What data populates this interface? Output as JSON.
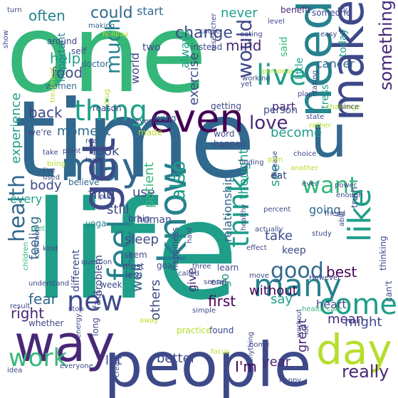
{
  "word_cloud": {
    "background": "#ffffff",
    "palette": {
      "yellow": "#b5de2b",
      "green": "#6ece58",
      "lightgreen": "#35b779",
      "teal": "#1f9e89",
      "cyan": "#26828e",
      "blue": "#31688e",
      "indigo": "#3e4989",
      "purple": "#482878",
      "dark": "#440154"
    },
    "words": [
      {
        "text": "one",
        "color": "lightgreen"
      },
      {
        "text": "time",
        "color": "blue"
      },
      {
        "text": "life",
        "color": "teal"
      },
      {
        "text": "people",
        "color": "indigo"
      },
      {
        "text": "way",
        "color": "purple"
      },
      {
        "text": "make",
        "color": "indigo"
      },
      {
        "text": "need",
        "color": "cyan"
      },
      {
        "text": "u",
        "color": "blue"
      },
      {
        "text": "even",
        "color": "dark"
      },
      {
        "text": "may",
        "color": "blue"
      },
      {
        "text": "get",
        "color": "indigo"
      },
      {
        "text": "know",
        "color": "cyan"
      },
      {
        "text": "day",
        "color": "yellow"
      },
      {
        "text": "feel",
        "color": "cyan"
      },
      {
        "text": "live",
        "color": "teal"
      },
      {
        "text": "thing",
        "color": "teal"
      },
      {
        "text": "new",
        "color": "indigo"
      },
      {
        "text": "many",
        "color": "cyan"
      },
      {
        "text": "come",
        "color": "teal"
      },
      {
        "text": "like",
        "color": "teal"
      },
      {
        "text": "want",
        "color": "lightgreen"
      },
      {
        "text": "good",
        "color": "blue"
      },
      {
        "text": "think",
        "color": "teal"
      },
      {
        "text": "work",
        "color": "lightgreen"
      },
      {
        "text": "much",
        "color": "cyan"
      },
      {
        "text": "would",
        "color": "indigo"
      },
      {
        "text": "love",
        "color": "purple"
      },
      {
        "text": "health",
        "color": "blue"
      },
      {
        "text": "also",
        "color": "teal"
      },
      {
        "text": "something",
        "color": "purple"
      },
      {
        "text": "really",
        "color": "purple"
      },
      {
        "text": "could",
        "color": "blue"
      },
      {
        "text": "change",
        "color": "indigo"
      },
      {
        "text": "often",
        "color": "cyan"
      },
      {
        "text": "food",
        "color": "indigo"
      },
      {
        "text": "help",
        "color": "teal"
      },
      {
        "text": "mind",
        "color": "purple"
      },
      {
        "text": "cancer",
        "color": "blue"
      },
      {
        "text": "world",
        "color": "indigo"
      },
      {
        "text": "part",
        "color": "purple"
      },
      {
        "text": "exercise",
        "color": "indigo"
      },
      {
        "text": "back",
        "color": "indigo"
      },
      {
        "text": "person",
        "color": "indigo"
      },
      {
        "text": "become",
        "color": "teal"
      },
      {
        "text": "experience",
        "color": "teal"
      },
      {
        "text": "moment",
        "color": "blue"
      },
      {
        "text": "look",
        "color": "indigo"
      },
      {
        "text": "body",
        "color": "indigo"
      },
      {
        "text": "find",
        "color": "indigo"
      },
      {
        "text": "use",
        "color": "indigo"
      },
      {
        "text": "patient",
        "color": "lightgreen"
      },
      {
        "text": "see",
        "color": "teal"
      },
      {
        "text": "thought",
        "color": "teal"
      },
      {
        "text": "going",
        "color": "blue"
      },
      {
        "text": "still",
        "color": "indigo"
      },
      {
        "text": "sleep",
        "color": "indigo"
      },
      {
        "text": "relationship",
        "color": "blue"
      },
      {
        "text": "take",
        "color": "indigo"
      },
      {
        "text": "keep",
        "color": "indigo"
      },
      {
        "text": "feeling",
        "color": "blue"
      },
      {
        "text": "fear",
        "color": "blue"
      },
      {
        "text": "right",
        "color": "purple"
      },
      {
        "text": "well",
        "color": "blue"
      },
      {
        "text": "without",
        "color": "dark"
      },
      {
        "text": "say",
        "color": "teal"
      },
      {
        "text": "best",
        "color": "dark"
      },
      {
        "text": "heart",
        "color": "indigo"
      },
      {
        "text": "mean",
        "color": "purple"
      },
      {
        "text": "might",
        "color": "indigo"
      },
      {
        "text": "others",
        "color": "indigo"
      },
      {
        "text": "first",
        "color": "dark"
      },
      {
        "text": "I'm",
        "color": "dark"
      },
      {
        "text": "year",
        "color": "purple"
      },
      {
        "text": "better",
        "color": "indigo"
      },
      {
        "text": "let",
        "color": "indigo"
      },
      {
        "text": "great",
        "color": "purple"
      },
      {
        "text": "every",
        "color": "teal"
      },
      {
        "text": "start",
        "color": "blue"
      },
      {
        "text": "never",
        "color": "teal"
      },
      {
        "text": "always",
        "color": "teal"
      },
      {
        "text": "important",
        "color": "cyan"
      },
      {
        "text": "little",
        "color": "teal"
      },
      {
        "text": "said",
        "color": "lightgreen"
      },
      {
        "text": "stress",
        "color": "teal"
      },
      {
        "text": "today",
        "color": "teal"
      },
      {
        "text": "eat",
        "color": "indigo"
      },
      {
        "text": "give",
        "color": "purple"
      },
      {
        "text": "go",
        "color": "teal"
      },
      {
        "text": "fact",
        "color": "indigo"
      },
      {
        "text": "different",
        "color": "indigo"
      },
      {
        "text": "problem",
        "color": "indigo"
      },
      {
        "text": "human",
        "color": "indigo"
      },
      {
        "text": "two",
        "color": "indigo"
      },
      {
        "text": "self",
        "color": "indigo"
      },
      {
        "text": "around",
        "color": "indigo"
      },
      {
        "text": "women",
        "color": "blue"
      },
      {
        "text": "making",
        "color": "blue"
      },
      {
        "text": "doctor",
        "color": "blue"
      },
      {
        "text": "reason",
        "color": "indigo"
      },
      {
        "text": "living",
        "color": "blue"
      },
      {
        "text": "true",
        "color": "blue"
      },
      {
        "text": "we're",
        "color": "indigo"
      },
      {
        "text": "yoga",
        "color": "cyan"
      },
      {
        "text": "believe",
        "color": "blue"
      },
      {
        "text": "seem",
        "color": "indigo"
      },
      {
        "text": "must",
        "color": "indigo"
      },
      {
        "text": "less",
        "color": "indigo"
      },
      {
        "text": "goal",
        "color": "indigo"
      },
      {
        "text": "week",
        "color": "indigo"
      },
      {
        "text": "found",
        "color": "indigo"
      },
      {
        "text": "long",
        "color": "indigo"
      },
      {
        "text": "happiness",
        "color": "indigo"
      },
      {
        "text": "whether",
        "color": "indigo"
      },
      {
        "text": "practice",
        "color": "yellow"
      },
      {
        "text": "end",
        "color": "indigo"
      },
      {
        "text": "learn",
        "color": "indigo"
      },
      {
        "text": "getting",
        "color": "indigo"
      },
      {
        "text": "made",
        "color": "yellow"
      },
      {
        "text": "word",
        "color": "indigo"
      },
      {
        "text": "happen",
        "color": "indigo"
      },
      {
        "text": "brain",
        "color": "indigo"
      },
      {
        "text": "benefit",
        "color": "purple"
      },
      {
        "text": "someone",
        "color": "indigo"
      },
      {
        "text": "try",
        "color": "indigo"
      },
      {
        "text": "researcher",
        "color": "indigo"
      },
      {
        "text": "instead",
        "color": "indigo"
      },
      {
        "text": "eating",
        "color": "indigo"
      },
      {
        "text": "level",
        "color": "indigo"
      },
      {
        "text": "easy",
        "color": "indigo"
      },
      {
        "text": "cause",
        "color": "indigo"
      },
      {
        "text": "holiday",
        "color": "yellow"
      },
      {
        "text": "show",
        "color": "indigo"
      },
      {
        "text": "personal",
        "color": "yellow"
      },
      {
        "text": "working",
        "color": "indigo"
      },
      {
        "text": "yet",
        "color": "indigo"
      },
      {
        "text": "taking",
        "color": "indigo"
      },
      {
        "text": "place",
        "color": "indigo"
      },
      {
        "text": "challenge",
        "color": "yellow"
      },
      {
        "text": "since",
        "color": "indigo"
      },
      {
        "text": "state",
        "color": "indigo"
      },
      {
        "text": "rather",
        "color": "yellow"
      },
      {
        "text": "treatment",
        "color": "yellow"
      },
      {
        "text": "drug",
        "color": "yellow"
      },
      {
        "text": "everything",
        "color": "indigo"
      },
      {
        "text": "real",
        "color": "indigo"
      },
      {
        "text": "lead",
        "color": "indigo"
      },
      {
        "text": "take",
        "color": "indigo"
      },
      {
        "text": "bring",
        "color": "yellow"
      },
      {
        "text": "I've",
        "color": "indigo"
      },
      {
        "text": "used",
        "color": "indigo"
      },
      {
        "text": "point",
        "color": "indigo"
      },
      {
        "text": "disease",
        "color": "indigo"
      },
      {
        "text": "choice",
        "color": "indigo"
      },
      {
        "text": "finding",
        "color": "indigo"
      },
      {
        "text": "pain",
        "color": "yellow"
      },
      {
        "text": "another",
        "color": "yellow"
      },
      {
        "text": "ever",
        "color": "indigo"
      },
      {
        "text": "power",
        "color": "indigo"
      },
      {
        "text": "enough",
        "color": "indigo"
      },
      {
        "text": "put",
        "color": "indigo"
      },
      {
        "text": "percent",
        "color": "indigo"
      },
      {
        "text": "study",
        "color": "indigo"
      },
      {
        "text": "truth",
        "color": "indigo"
      },
      {
        "text": "diet",
        "color": "lightgreen"
      },
      {
        "text": "kind",
        "color": "indigo"
      },
      {
        "text": "hard",
        "color": "indigo"
      },
      {
        "text": "actually",
        "color": "indigo"
      },
      {
        "text": "healthy",
        "color": "indigo"
      },
      {
        "text": "effect",
        "color": "indigo"
      },
      {
        "text": "friend",
        "color": "indigo"
      },
      {
        "text": "able",
        "color": "indigo"
      },
      {
        "text": "thinking",
        "color": "indigo"
      },
      {
        "text": "children",
        "color": "lightgreen"
      },
      {
        "text": "question",
        "color": "indigo"
      },
      {
        "text": "called",
        "color": "indigo"
      },
      {
        "text": "sense",
        "color": "indigo"
      },
      {
        "text": "three",
        "color": "indigo"
      },
      {
        "text": "move",
        "color": "indigo"
      },
      {
        "text": "However",
        "color": "indigo"
      },
      {
        "text": "understand",
        "color": "indigo"
      },
      {
        "text": "common",
        "color": "indigo"
      },
      {
        "text": "health care",
        "color": "lightgreen"
      },
      {
        "text": "result",
        "color": "indigo"
      },
      {
        "text": "stop",
        "color": "indigo"
      },
      {
        "text": "simple",
        "color": "indigo"
      },
      {
        "text": "away",
        "color": "yellow"
      },
      {
        "text": "can't",
        "color": "indigo"
      },
      {
        "text": "workout",
        "color": "indigo"
      },
      {
        "text": "energy",
        "color": "indigo"
      },
      {
        "text": "focus",
        "color": "yellow"
      },
      {
        "text": "create",
        "color": "indigo"
      },
      {
        "text": "anything",
        "color": "indigo"
      },
      {
        "text": "home",
        "color": "indigo"
      },
      {
        "text": "lot",
        "color": "indigo"
      },
      {
        "text": "idea",
        "color": "indigo"
      },
      {
        "text": "everyone",
        "color": "indigo"
      },
      {
        "text": "happy",
        "color": "indigo"
      },
      {
        "text": "turn",
        "color": "indigo"
      }
    ]
  }
}
